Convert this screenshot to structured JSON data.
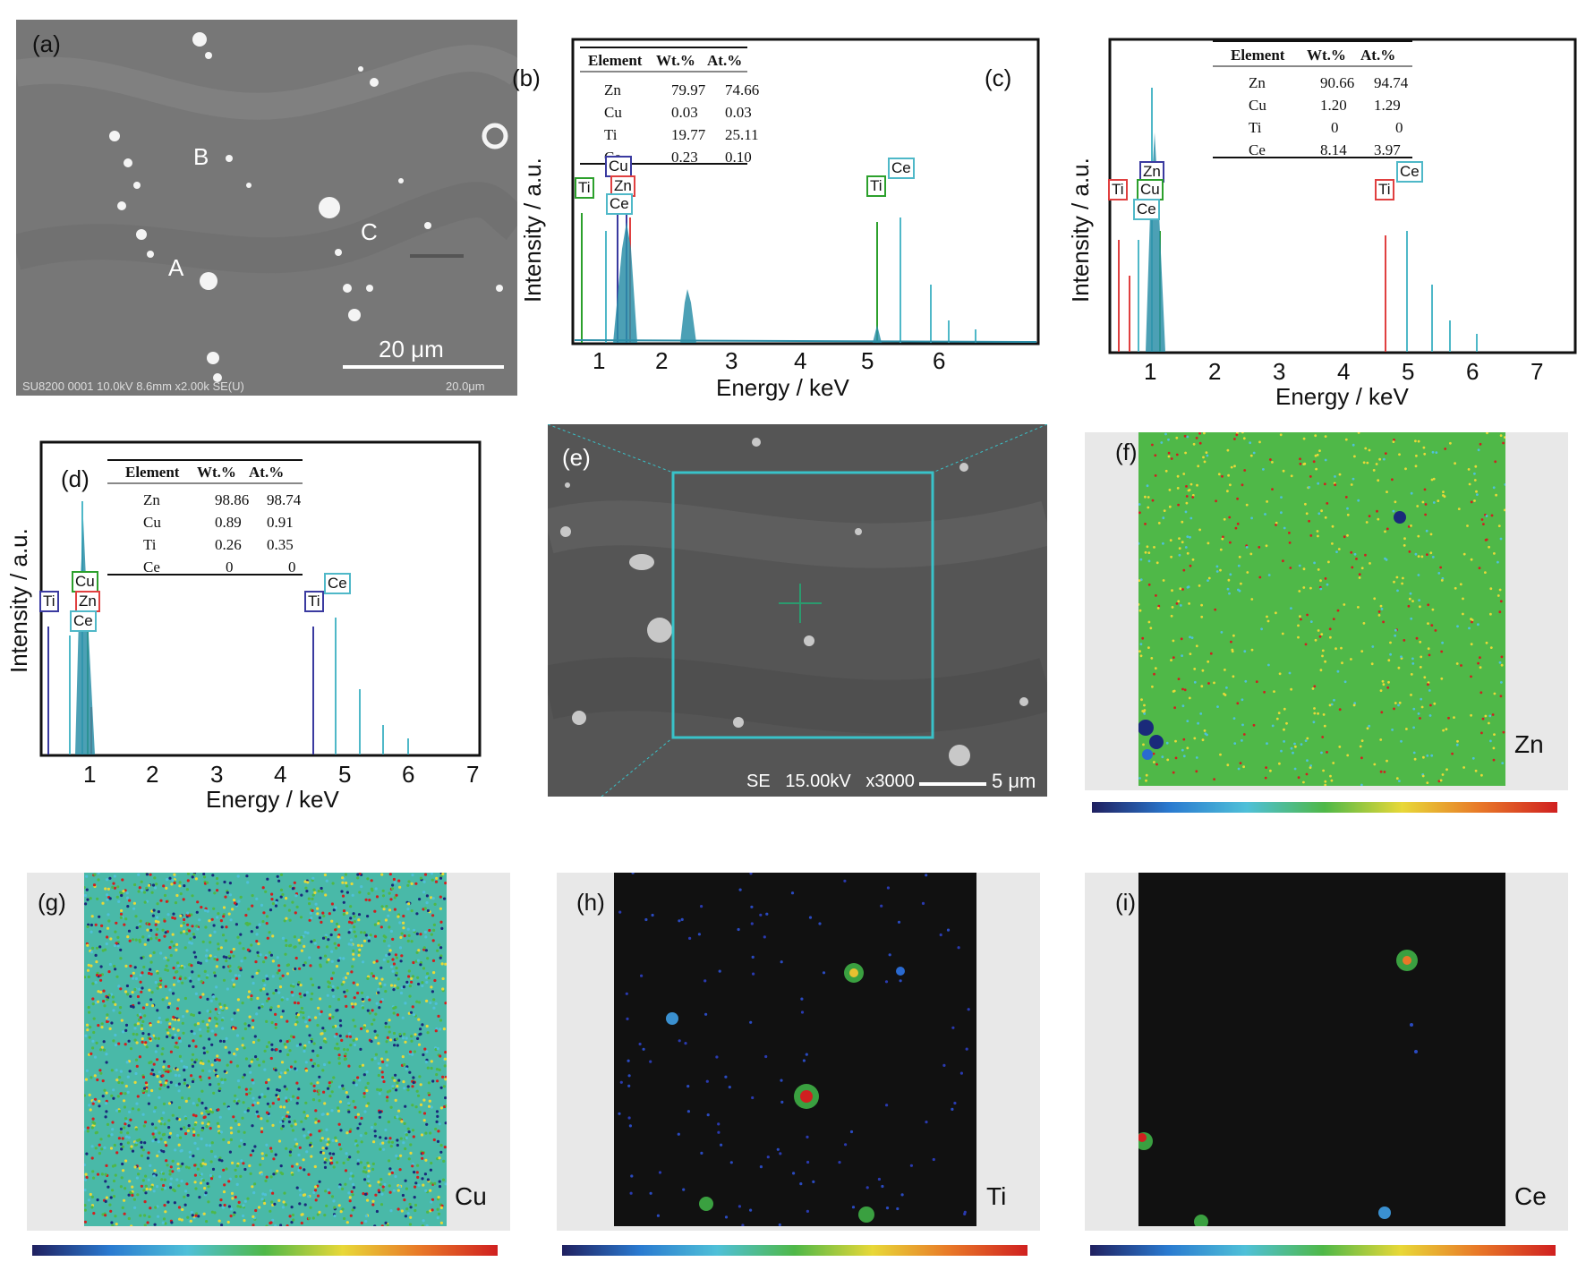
{
  "panels": {
    "a": {
      "label": "(a)",
      "points": [
        "B",
        "C",
        "A"
      ],
      "scale_bar": "20 μm",
      "footer_left": "SU8200 0001 10.0kV 8.6mm x2.00k SE(U)",
      "footer_right": "20.0μm"
    },
    "b": {
      "label": "(b)",
      "ylabel": "Intensity / a.u.",
      "xlabel": "Energy / keV",
      "xticks": [
        "1",
        "2",
        "3",
        "4",
        "5",
        "6"
      ],
      "table": {
        "headers": [
          "Element",
          "Wt.%",
          "At.%"
        ],
        "rows": [
          [
            "Zn",
            "79.97",
            "74.66"
          ],
          [
            "Cu",
            "0.03",
            "0.03"
          ],
          [
            "Ti",
            "19.77",
            "25.11"
          ],
          [
            "Ce",
            "0.23",
            "0.10"
          ]
        ]
      },
      "peak_labels": [
        "Ti",
        "Cu",
        "Zn",
        "Ce",
        "Ti",
        "Ce"
      ]
    },
    "c": {
      "label": "(c)",
      "ylabel": "Intensity / a.u.",
      "xlabel": "Energy / keV",
      "xticks": [
        "1",
        "2",
        "3",
        "4",
        "5",
        "6",
        "7"
      ],
      "table": {
        "headers": [
          "Element",
          "Wt.%",
          "At.%"
        ],
        "rows": [
          [
            "Zn",
            "90.66",
            "94.74"
          ],
          [
            "Cu",
            "1.20",
            "1.29"
          ],
          [
            "Ti",
            "0",
            "0"
          ],
          [
            "Ce",
            "8.14",
            "3.97"
          ]
        ]
      },
      "peak_labels": [
        "Ti",
        "Zn",
        "Cu",
        "Ce",
        "Ti",
        "Ce"
      ]
    },
    "d": {
      "label": "(d)",
      "ylabel": "Intensity / a.u.",
      "xlabel": "Energy / keV",
      "xticks": [
        "1",
        "2",
        "3",
        "4",
        "5",
        "6",
        "7"
      ],
      "table": {
        "headers": [
          "Element",
          "Wt.%",
          "At.%"
        ],
        "rows": [
          [
            "Zn",
            "98.86",
            "98.74"
          ],
          [
            "Cu",
            "0.89",
            "0.91"
          ],
          [
            "Ti",
            "0.26",
            "0.35"
          ],
          [
            "Ce",
            "0",
            "0"
          ]
        ]
      },
      "peak_labels": [
        "Ti",
        "Cu",
        "Zn",
        "Ce",
        "Ti",
        "Ce"
      ]
    },
    "e": {
      "label": "(e)",
      "footer": "SE   15.00kV   x3000",
      "scale_bar": "5 μm"
    },
    "f": {
      "label": "(f)",
      "element": "Zn"
    },
    "g": {
      "label": "(g)",
      "element": "Cu"
    },
    "h": {
      "label": "(h)",
      "element": "Ti"
    },
    "i": {
      "label": "(i)",
      "element": "Ce"
    }
  },
  "colors": {
    "ti_b": "#2ca02c",
    "ti_c": "#e04040",
    "ti_d": "#3a3aa0",
    "cu": "#3a3aa0",
    "zn": "#e04040",
    "ce": "#4fb8c8",
    "spectrum_fill": "#2d8fa8",
    "box": "#39c2c9"
  }
}
